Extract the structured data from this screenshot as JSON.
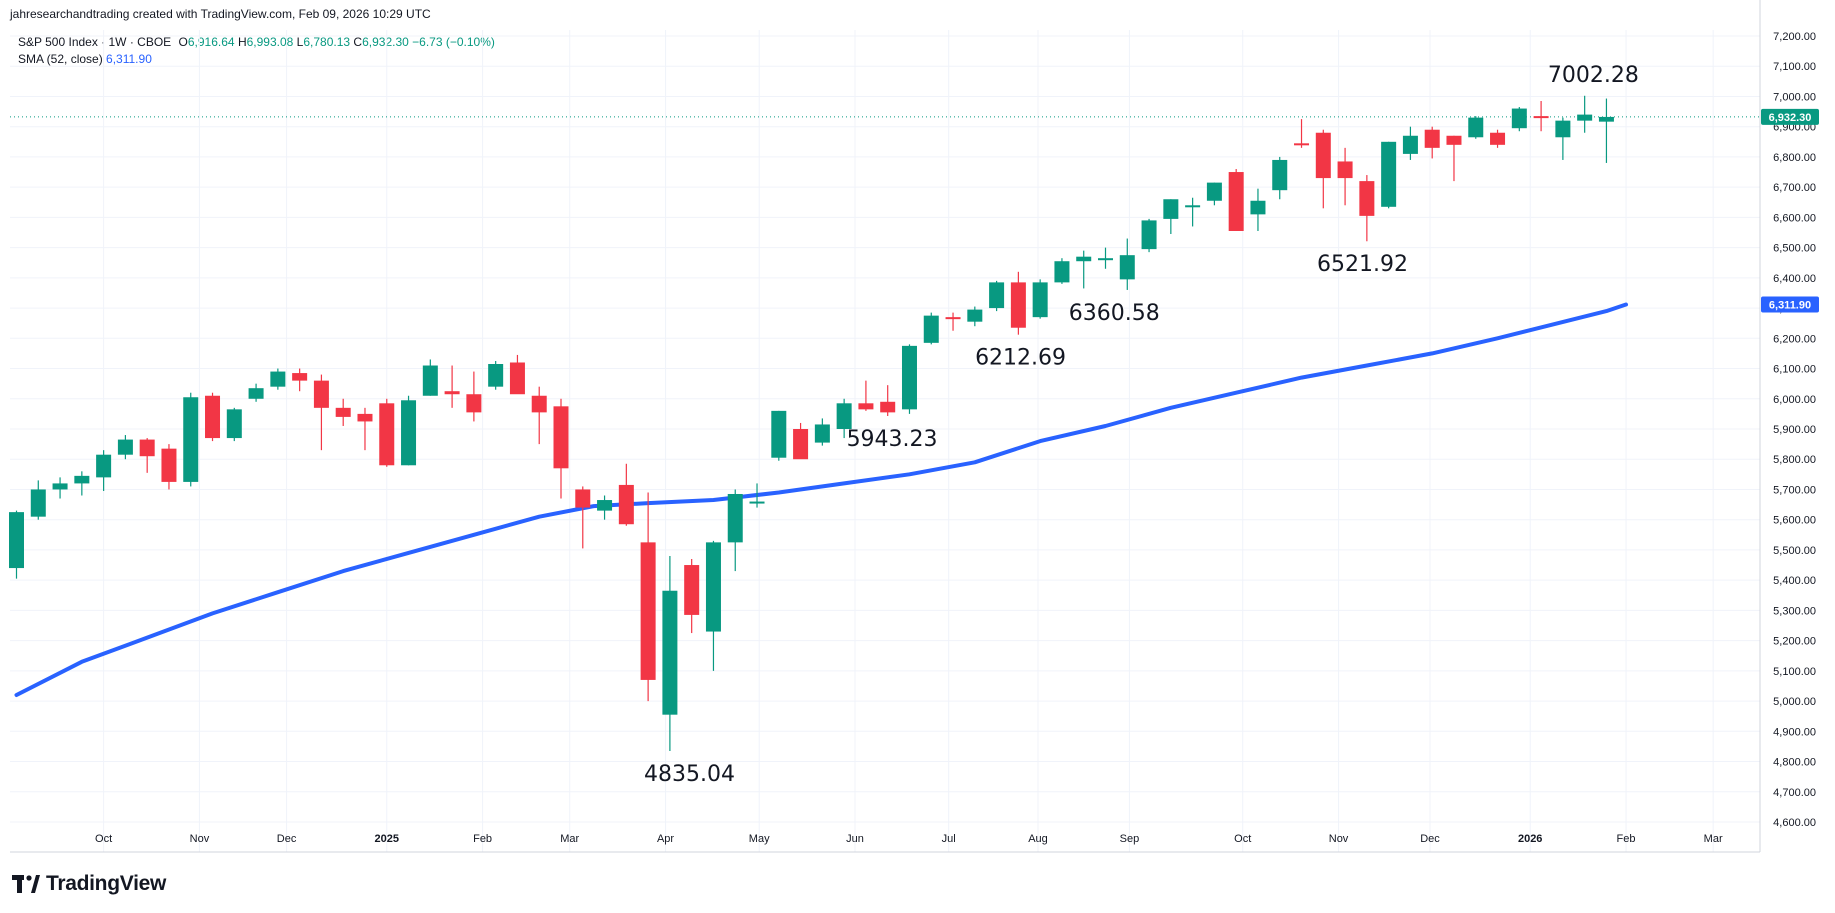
{
  "header": {
    "attribution": "jahresearchandtrading created with TradingView.com, Feb 09, 2026 10:29 UTC"
  },
  "legend": {
    "symbol": "S&P 500 Index · 1W · CBOE",
    "o_label": "O",
    "o_value": "6,916.64",
    "h_label": "H",
    "h_value": "6,993.08",
    "l_label": "L",
    "l_value": "6,780.13",
    "c_label": "C",
    "c_value": "6,932.30",
    "change": "−6.73 (−0.10%)",
    "sma_label": "SMA (52, close)",
    "sma_value": "6,311.90"
  },
  "branding": {
    "logo_text": "TradingView"
  },
  "colors": {
    "up": "#089981",
    "down": "#f23645",
    "sma": "#2962ff",
    "grid": "#f0f3fa",
    "axis_text": "#131722"
  },
  "chart_data": {
    "type": "candlestick",
    "title": "S&P 500 Index · 1W · CBOE",
    "ylim": [
      4600,
      7200
    ],
    "y_ticks": [
      "7,200.00",
      "7,100.00",
      "7,000.00",
      "6,900.00",
      "6,800.00",
      "6,700.00",
      "6,600.00",
      "6,500.00",
      "6,400.00",
      "6,300.00",
      "6,200.00",
      "6,100.00",
      "6,000.00",
      "5,900.00",
      "5,800.00",
      "5,700.00",
      "5,600.00",
      "5,500.00",
      "5,400.00",
      "5,300.00",
      "5,200.00",
      "5,100.00",
      "5,000.00",
      "4,900.00",
      "4,800.00",
      "4,700.00",
      "4,600.00"
    ],
    "x_ticks": [
      {
        "label": "Oct",
        "week": 4.0
      },
      {
        "label": "Nov",
        "week": 8.4
      },
      {
        "label": "Dec",
        "week": 12.4
      },
      {
        "label": "2025",
        "week": 17.0
      },
      {
        "label": "Feb",
        "week": 21.4
      },
      {
        "label": "Mar",
        "week": 25.4
      },
      {
        "label": "Apr",
        "week": 29.8
      },
      {
        "label": "May",
        "week": 34.1
      },
      {
        "label": "Jun",
        "week": 38.5
      },
      {
        "label": "Jul",
        "week": 42.8
      },
      {
        "label": "Aug",
        "week": 46.9
      },
      {
        "label": "Sep",
        "week": 51.1
      },
      {
        "label": "Oct",
        "week": 56.3
      },
      {
        "label": "Nov",
        "week": 60.7
      },
      {
        "label": "Dec",
        "week": 64.9
      },
      {
        "label": "2026",
        "week": 69.5
      },
      {
        "label": "Feb",
        "week": 73.9
      },
      {
        "label": "Mar",
        "week": 77.9
      }
    ],
    "candles": [
      {
        "o": 5440,
        "h": 5630,
        "l": 5405,
        "c": 5625
      },
      {
        "o": 5610,
        "h": 5730,
        "l": 5600,
        "c": 5700
      },
      {
        "o": 5700,
        "h": 5740,
        "l": 5670,
        "c": 5720
      },
      {
        "o": 5720,
        "h": 5760,
        "l": 5680,
        "c": 5745
      },
      {
        "o": 5740,
        "h": 5830,
        "l": 5695,
        "c": 5815
      },
      {
        "o": 5815,
        "h": 5880,
        "l": 5800,
        "c": 5865
      },
      {
        "o": 5865,
        "h": 5870,
        "l": 5755,
        "c": 5810
      },
      {
        "o": 5835,
        "h": 5850,
        "l": 5700,
        "c": 5725
      },
      {
        "o": 5725,
        "h": 6020,
        "l": 5710,
        "c": 6005
      },
      {
        "o": 6010,
        "h": 6020,
        "l": 5860,
        "c": 5870
      },
      {
        "o": 5870,
        "h": 5970,
        "l": 5860,
        "c": 5965
      },
      {
        "o": 6000,
        "h": 6050,
        "l": 5990,
        "c": 6035
      },
      {
        "o": 6040,
        "h": 6100,
        "l": 6030,
        "c": 6090
      },
      {
        "o": 6085,
        "h": 6100,
        "l": 6025,
        "c": 6060
      },
      {
        "o": 6060,
        "h": 6080,
        "l": 5830,
        "c": 5970
      },
      {
        "o": 5970,
        "h": 6000,
        "l": 5910,
        "c": 5940
      },
      {
        "o": 5950,
        "h": 5970,
        "l": 5830,
        "c": 5925
      },
      {
        "o": 5985,
        "h": 6000,
        "l": 5775,
        "c": 5780
      },
      {
        "o": 5780,
        "h": 6010,
        "l": 5780,
        "c": 5995
      },
      {
        "o": 6010,
        "h": 6130,
        "l": 6010,
        "c": 6110
      },
      {
        "o": 6025,
        "h": 6110,
        "l": 5970,
        "c": 6015
      },
      {
        "o": 6015,
        "h": 6090,
        "l": 5925,
        "c": 5955
      },
      {
        "o": 6040,
        "h": 6125,
        "l": 6030,
        "c": 6115
      },
      {
        "o": 6120,
        "h": 6145,
        "l": 6025,
        "c": 6015
      },
      {
        "o": 6010,
        "h": 6040,
        "l": 5850,
        "c": 5955
      },
      {
        "o": 5975,
        "h": 6000,
        "l": 5670,
        "c": 5770
      },
      {
        "o": 5700,
        "h": 5710,
        "l": 5505,
        "c": 5640
      },
      {
        "o": 5630,
        "h": 5680,
        "l": 5600,
        "c": 5665
      },
      {
        "o": 5715,
        "h": 5785,
        "l": 5580,
        "c": 5585
      },
      {
        "o": 5525,
        "h": 5690,
        "l": 5000,
        "c": 5070
      },
      {
        "o": 4955,
        "h": 5480,
        "l": 4835,
        "c": 5365
      },
      {
        "o": 5450,
        "h": 5470,
        "l": 5225,
        "c": 5285
      },
      {
        "o": 5230,
        "h": 5530,
        "l": 5100,
        "c": 5525
      },
      {
        "o": 5525,
        "h": 5700,
        "l": 5430,
        "c": 5685
      },
      {
        "o": 5660,
        "h": 5720,
        "l": 5640,
        "c": 5660
      },
      {
        "o": 5805,
        "h": 5960,
        "l": 5795,
        "c": 5960
      },
      {
        "o": 5900,
        "h": 5920,
        "l": 5810,
        "c": 5800
      },
      {
        "o": 5855,
        "h": 5935,
        "l": 5845,
        "c": 5915
      },
      {
        "o": 5900,
        "h": 6000,
        "l": 5870,
        "c": 5985
      },
      {
        "o": 5985,
        "h": 6060,
        "l": 5960,
        "c": 5965
      },
      {
        "o": 5990,
        "h": 6045,
        "l": 5943,
        "c": 5955
      },
      {
        "o": 5965,
        "h": 6180,
        "l": 5950,
        "c": 6175
      },
      {
        "o": 6185,
        "h": 6285,
        "l": 6180,
        "c": 6275
      },
      {
        "o": 6270,
        "h": 6285,
        "l": 6225,
        "c": 6265
      },
      {
        "o": 6255,
        "h": 6305,
        "l": 6240,
        "c": 6295
      },
      {
        "o": 6300,
        "h": 6390,
        "l": 6290,
        "c": 6385
      },
      {
        "o": 6385,
        "h": 6420,
        "l": 6212,
        "c": 6235
      },
      {
        "o": 6270,
        "h": 6395,
        "l": 6265,
        "c": 6385
      },
      {
        "o": 6385,
        "h": 6465,
        "l": 6380,
        "c": 6455
      },
      {
        "o": 6455,
        "h": 6490,
        "l": 6365,
        "c": 6470
      },
      {
        "o": 6465,
        "h": 6500,
        "l": 6430,
        "c": 6465
      },
      {
        "o": 6395,
        "h": 6530,
        "l": 6360,
        "c": 6475
      },
      {
        "o": 6495,
        "h": 6595,
        "l": 6485,
        "c": 6590
      },
      {
        "o": 6595,
        "h": 6660,
        "l": 6545,
        "c": 6660
      },
      {
        "o": 6640,
        "h": 6665,
        "l": 6570,
        "c": 6640
      },
      {
        "o": 6655,
        "h": 6715,
        "l": 6640,
        "c": 6715
      },
      {
        "o": 6750,
        "h": 6760,
        "l": 6555,
        "c": 6555
      },
      {
        "o": 6610,
        "h": 6695,
        "l": 6555,
        "c": 6655
      },
      {
        "o": 6690,
        "h": 6800,
        "l": 6660,
        "c": 6790
      },
      {
        "o": 6845,
        "h": 6925,
        "l": 6830,
        "c": 6840
      },
      {
        "o": 6880,
        "h": 6890,
        "l": 6630,
        "c": 6730
      },
      {
        "o": 6785,
        "h": 6830,
        "l": 6640,
        "c": 6730
      },
      {
        "o": 6720,
        "h": 6740,
        "l": 6521,
        "c": 6605
      },
      {
        "o": 6635,
        "h": 6850,
        "l": 6630,
        "c": 6850
      },
      {
        "o": 6810,
        "h": 6900,
        "l": 6790,
        "c": 6870
      },
      {
        "o": 6890,
        "h": 6900,
        "l": 6795,
        "c": 6830
      },
      {
        "o": 6870,
        "h": 6870,
        "l": 6720,
        "c": 6840
      },
      {
        "o": 6865,
        "h": 6935,
        "l": 6860,
        "c": 6930
      },
      {
        "o": 6880,
        "h": 6890,
        "l": 6830,
        "c": 6840
      },
      {
        "o": 6895,
        "h": 6965,
        "l": 6885,
        "c": 6960
      },
      {
        "o": 6935,
        "h": 6985,
        "l": 6885,
        "c": 6930
      },
      {
        "o": 6865,
        "h": 6930,
        "l": 6790,
        "c": 6920
      },
      {
        "o": 6920,
        "h": 7002.28,
        "l": 6880,
        "c": 6940
      },
      {
        "o": 6916.64,
        "h": 6993.08,
        "l": 6780.13,
        "c": 6932.3
      }
    ],
    "sma": [
      [
        0,
        5020
      ],
      [
        3,
        5130
      ],
      [
        6,
        5210
      ],
      [
        9,
        5290
      ],
      [
        12,
        5360
      ],
      [
        15,
        5430
      ],
      [
        18,
        5490
      ],
      [
        21,
        5550
      ],
      [
        24,
        5610
      ],
      [
        26.5,
        5645
      ],
      [
        29,
        5655
      ],
      [
        32,
        5665
      ],
      [
        35,
        5690
      ],
      [
        38,
        5720
      ],
      [
        41,
        5750
      ],
      [
        44,
        5790
      ],
      [
        47,
        5860
      ],
      [
        50,
        5910
      ],
      [
        53,
        5970
      ],
      [
        56,
        6020
      ],
      [
        59,
        6070
      ],
      [
        62,
        6110
      ],
      [
        65,
        6150
      ],
      [
        68,
        6200
      ],
      [
        70.5,
        6245
      ],
      [
        73,
        6290
      ],
      [
        73.9,
        6311.9
      ]
    ],
    "last_price": {
      "value": 6932.3,
      "label": "6,932.30"
    },
    "sma_last": {
      "value": 6311.9,
      "label": "6,311.90"
    },
    "annotations": [
      {
        "text": "7002.28",
        "week": 72.4,
        "value": 7002.28,
        "pos": "above"
      },
      {
        "text": "6521.92",
        "week": 61.8,
        "value": 6521.92,
        "pos": "below"
      },
      {
        "text": "6360.58",
        "week": 50.4,
        "value": 6360.58,
        "pos": "below"
      },
      {
        "text": "6212.69",
        "week": 46.1,
        "value": 6212.69,
        "pos": "below"
      },
      {
        "text": "5943.23",
        "week": 40.2,
        "value": 5943.23,
        "pos": "below"
      },
      {
        "text": "4835.04",
        "week": 30.9,
        "value": 4835.04,
        "pos": "below"
      }
    ]
  }
}
